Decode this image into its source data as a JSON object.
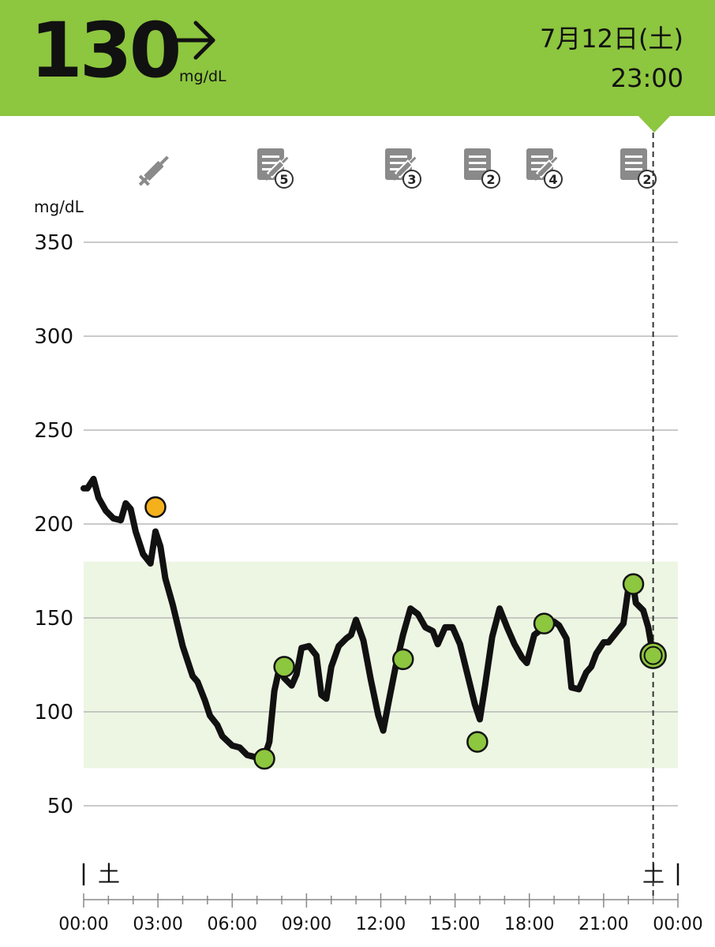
{
  "header": {
    "reading": "130",
    "unit": "mg/dL",
    "trend_icon": "arrow-right-icon",
    "date": "7月12日(土)",
    "time": "23:00",
    "accent_color": "#8dc63f"
  },
  "events": [
    {
      "type": "insulin",
      "icon": "syringe-icon",
      "time": 2.9
    },
    {
      "type": "insulin-note",
      "icon": "syringe-note-icon",
      "badge": "5",
      "time": 7.7
    },
    {
      "type": "insulin-note",
      "icon": "syringe-note-icon",
      "badge": "3",
      "time": 12.9
    },
    {
      "type": "note",
      "icon": "note-icon",
      "badge": "2",
      "time": 16.0
    },
    {
      "type": "insulin-note",
      "icon": "syringe-note-icon",
      "badge": "4",
      "time": 18.6
    },
    {
      "type": "note",
      "icon": "note-icon",
      "badge": "2",
      "time": 22.4
    }
  ],
  "chart_data": {
    "type": "line",
    "ylabel": "mg/dL",
    "y_ticks": [
      "350",
      "300",
      "250",
      "200",
      "150",
      "100",
      "50"
    ],
    "x_ticks": [
      "00:00",
      "03:00",
      "06:00",
      "09:00",
      "12:00",
      "15:00",
      "18:00",
      "21:00",
      "00:00"
    ],
    "day_labels": [
      "土",
      "土"
    ],
    "ylim": [
      20,
      365
    ],
    "xlim": [
      0,
      24
    ],
    "target_range": [
      70,
      180
    ],
    "current_time": 23.0,
    "grid": "horizontal",
    "colors": {
      "line": "#111111",
      "in_range": "#8dc63f",
      "high": "#f5b11c",
      "target_band": "#edf6e3",
      "grid": "#b8b8b8"
    },
    "series": [
      {
        "x": [
          0,
          0.15,
          0.4,
          0.6,
          0.9,
          1.2,
          1.5,
          1.7,
          1.9,
          2.1,
          2.4,
          2.7,
          2.9,
          3.1,
          3.3,
          3.6,
          4.0,
          4.4,
          4.6,
          4.9,
          5.1,
          5.4,
          5.6,
          6.0,
          6.3,
          6.6,
          6.9,
          7.1,
          7.3,
          7.5,
          7.7,
          7.9,
          8.1,
          8.4,
          8.6,
          8.8,
          9.1,
          9.4,
          9.6,
          9.8,
          10.0,
          10.3,
          10.6,
          10.8,
          11.0,
          11.3,
          11.6,
          11.9,
          12.1,
          12.3,
          12.6,
          12.9,
          13.2,
          13.5,
          13.8,
          14.1,
          14.3,
          14.6,
          14.9,
          15.2,
          15.5,
          15.8,
          16.0,
          16.2,
          16.5,
          16.8,
          17.1,
          17.4,
          17.7,
          17.9,
          18.2,
          18.5,
          18.8,
          19.0,
          19.2,
          19.5,
          19.7,
          20.0,
          20.3,
          20.5,
          20.7,
          21.0,
          21.2,
          21.5,
          21.8,
          22.0,
          22.2,
          22.3,
          22.6,
          22.8,
          23.0
        ],
        "y": [
          219,
          219,
          224,
          214,
          207,
          203,
          202,
          211,
          208,
          196,
          184,
          179,
          196,
          188,
          171,
          157,
          135,
          119,
          116,
          106,
          98,
          93,
          87,
          82,
          81,
          77,
          76,
          74,
          76,
          84,
          111,
          123,
          118,
          114,
          120,
          134,
          135,
          130,
          109,
          107,
          124,
          135,
          139,
          141,
          149,
          138,
          117,
          98,
          90,
          104,
          124,
          141,
          155,
          152,
          145,
          143,
          136,
          145,
          145,
          136,
          120,
          104,
          96,
          113,
          140,
          155,
          145,
          136,
          129,
          126,
          141,
          144,
          147,
          148,
          146,
          139,
          113,
          112,
          121,
          124,
          131,
          137,
          137,
          142,
          147,
          166,
          167,
          158,
          154,
          145,
          130
        ]
      }
    ],
    "markers": [
      {
        "x": 2.9,
        "y": 209,
        "status": "high"
      },
      {
        "x": 7.3,
        "y": 75,
        "status": "in_range"
      },
      {
        "x": 8.1,
        "y": 124,
        "status": "in_range"
      },
      {
        "x": 12.9,
        "y": 128,
        "status": "in_range"
      },
      {
        "x": 15.9,
        "y": 84,
        "status": "in_range"
      },
      {
        "x": 18.6,
        "y": 147,
        "status": "in_range"
      },
      {
        "x": 22.2,
        "y": 168,
        "status": "in_range"
      },
      {
        "x": 23.0,
        "y": 130,
        "status": "current"
      }
    ]
  }
}
